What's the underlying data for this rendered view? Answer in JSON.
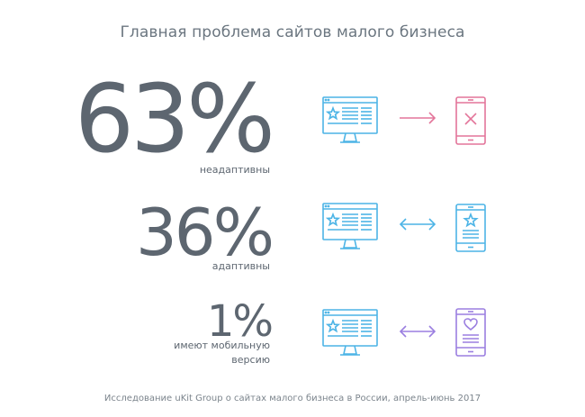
{
  "title": "Главная проблема сайтов малого бизнеса",
  "rows": [
    {
      "percent": "63%",
      "caption": "неадаптивны",
      "arrow": "one-way-arrow-icon",
      "phone": "phone-x-icon",
      "accent": "#e3759a"
    },
    {
      "percent": "36%",
      "caption": "адаптивны",
      "arrow": "two-way-arrow-icon",
      "phone": "phone-star-icon",
      "accent": "#4cb4e6"
    },
    {
      "percent": "1%",
      "caption_lines": [
        "имеют мобильную",
        "версию"
      ],
      "arrow": "two-way-arrow-icon",
      "phone": "phone-heart-icon",
      "accent": "#9b7fe0"
    }
  ],
  "footer": "Исследование uKit Group о сайтах малого бизнеса в России, апрель-июнь 2017",
  "colors": {
    "monitor": "#4cb4e6",
    "text": "#5d6670",
    "pink": "#e3759a",
    "blue": "#4cb4e6",
    "purple": "#9b7fe0"
  }
}
